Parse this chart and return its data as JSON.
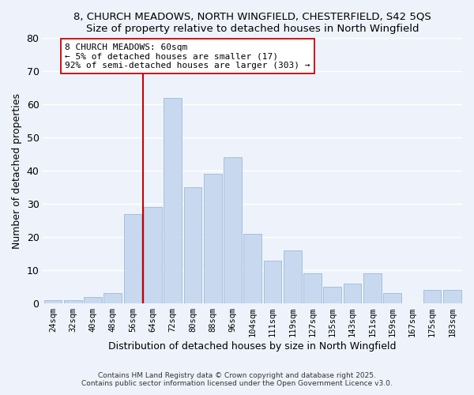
{
  "title": "8, CHURCH MEADOWS, NORTH WINGFIELD, CHESTERFIELD, S42 5QS",
  "subtitle": "Size of property relative to detached houses in North Wingfield",
  "xlabel": "Distribution of detached houses by size in North Wingfield",
  "ylabel": "Number of detached properties",
  "bar_labels": [
    "24sqm",
    "32sqm",
    "40sqm",
    "48sqm",
    "56sqm",
    "64sqm",
    "72sqm",
    "80sqm",
    "88sqm",
    "96sqm",
    "104sqm",
    "111sqm",
    "119sqm",
    "127sqm",
    "135sqm",
    "143sqm",
    "151sqm",
    "159sqm",
    "167sqm",
    "175sqm",
    "183sqm"
  ],
  "bar_values": [
    1,
    1,
    2,
    3,
    27,
    29,
    62,
    35,
    39,
    44,
    21,
    13,
    16,
    9,
    5,
    6,
    9,
    3,
    0,
    4,
    4
  ],
  "bar_color": "#c8d9ef",
  "bar_edge_color": "#9db8d8",
  "bg_color": "#eef3fb",
  "grid_color": "#ffffff",
  "vline_x": 4.5,
  "vline_color": "#cc0000",
  "annotation_text": "8 CHURCH MEADOWS: 60sqm\n← 5% of detached houses are smaller (17)\n92% of semi-detached houses are larger (303) →",
  "annotation_box_color": "#ffffff",
  "annotation_box_edge": "#cc0000",
  "ylim": [
    0,
    80
  ],
  "yticks": [
    0,
    10,
    20,
    30,
    40,
    50,
    60,
    70,
    80
  ],
  "footer1": "Contains HM Land Registry data © Crown copyright and database right 2025.",
  "footer2": "Contains public sector information licensed under the Open Government Licence v3.0."
}
